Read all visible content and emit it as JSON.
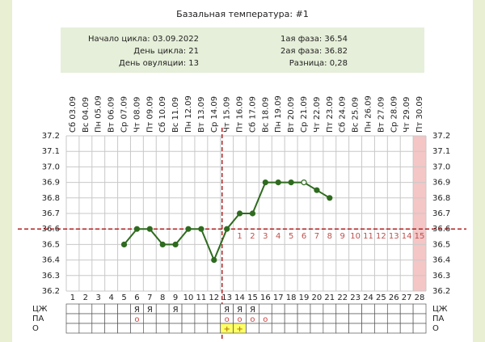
{
  "title": "Базальная температура: #1",
  "summary": {
    "left": [
      "Начало цикла: 03.09.2022",
      "День цикла: 21",
      "День овуляции: 13"
    ],
    "right": [
      "1ая фаза: 36.54",
      "2ая фаза: 36.82",
      "Разница: 0,28"
    ]
  },
  "chart_data": {
    "type": "line",
    "x": [
      1,
      2,
      3,
      4,
      5,
      6,
      7,
      8,
      9,
      10,
      11,
      12,
      13,
      14,
      15,
      16,
      17,
      18,
      19,
      20,
      21,
      22,
      23,
      24,
      25,
      26,
      27,
      28
    ],
    "dates": [
      "Сб 03.09",
      "Вс 04.09",
      "Пн 05.09",
      "Вт 06.09",
      "Ср 07.09",
      "Чт 08.09",
      "Пт 09.09",
      "Сб 10.09",
      "Вс 11.09",
      "Пн 12.09",
      "Вт 13.09",
      "Ср 14.09",
      "Чт 15.09",
      "Пт 16.09",
      "Сб 17.09",
      "Вс 18.09",
      "Пн 19.09",
      "Вт 20.09",
      "Ср 21.09",
      "Чт 22.09",
      "Пт 23.09",
      "Сб 24.09",
      "Вс 25.09",
      "Пн 26.09",
      "Вт 27.09",
      "Ср 28.09",
      "Чт 29.09",
      "Пт 30.09"
    ],
    "series": [
      {
        "color": "#2f6b1f",
        "values": [
          null,
          null,
          null,
          null,
          36.5,
          36.6,
          36.6,
          36.5,
          36.5,
          36.6,
          36.6,
          36.4,
          36.6,
          36.7,
          36.7,
          36.9,
          36.9,
          36.9,
          36.9,
          36.85,
          36.8,
          null,
          null,
          null,
          null,
          null,
          null,
          null
        ]
      }
    ],
    "hollow_points": [
      19
    ],
    "xlim": [
      0.5,
      28.5
    ],
    "ylim": [
      36.2,
      37.2
    ],
    "yticks": [
      36.2,
      36.3,
      36.4,
      36.5,
      36.6,
      36.7,
      36.8,
      36.9,
      {
        "value": 37,
        "label": "37.0"
      },
      37.1,
      37.2
    ],
    "grid": true,
    "coverline": 36.6,
    "ovulation_day": 13,
    "luteal_days": [
      1,
      2,
      3,
      4,
      5,
      6,
      7,
      8,
      9,
      10,
      11,
      12,
      13,
      14,
      15
    ],
    "highlight_day": 28,
    "rows": [
      {
        "label": "ЦЖ",
        "cells": [
          null,
          null,
          null,
          null,
          null,
          "Я",
          "Я",
          null,
          "Я",
          null,
          null,
          null,
          "Я",
          "Я",
          "Я",
          null,
          null,
          null,
          null,
          null,
          null,
          null,
          null,
          null,
          null,
          null,
          null,
          null
        ]
      },
      {
        "label": "ПА",
        "cells": [
          null,
          null,
          null,
          null,
          null,
          "о",
          null,
          null,
          null,
          null,
          null,
          null,
          "о",
          "о",
          "о",
          "о",
          null,
          null,
          null,
          null,
          null,
          null,
          null,
          null,
          null,
          null,
          null,
          null
        ]
      },
      {
        "label": "О",
        "cells": [
          null,
          null,
          null,
          null,
          null,
          null,
          null,
          null,
          null,
          null,
          null,
          null,
          "+",
          "+",
          null,
          null,
          null,
          null,
          null,
          null,
          null,
          null,
          null,
          null,
          null,
          null,
          null,
          null
        ]
      }
    ]
  }
}
